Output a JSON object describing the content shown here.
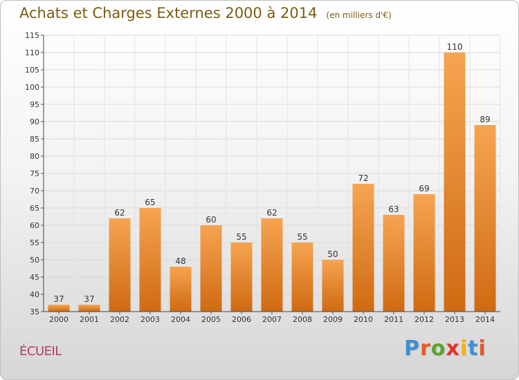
{
  "chart_data": {
    "type": "bar",
    "title": "Achats et Charges Externes 2000 à 2014",
    "unit_label": "(en milliers d'€)",
    "categories": [
      "2000",
      "2001",
      "2002",
      "2003",
      "2004",
      "2005",
      "2006",
      "2007",
      "2008",
      "2009",
      "2010",
      "2011",
      "2012",
      "2013",
      "2014"
    ],
    "values": [
      37,
      37,
      62,
      65,
      48,
      60,
      55,
      62,
      55,
      50,
      72,
      63,
      69,
      110,
      89
    ],
    "value_labels": [
      "37",
      "37",
      "62",
      "65",
      "48",
      "60",
      "55",
      "62",
      "55",
      "50",
      "72",
      "63",
      "69",
      "110",
      "89"
    ],
    "ylim": [
      35,
      115
    ],
    "y_ticks": [
      35,
      40,
      45,
      50,
      55,
      60,
      65,
      70,
      75,
      80,
      85,
      90,
      95,
      100,
      105,
      110,
      115
    ],
    "grid": true,
    "bar_color": "#f08a2a",
    "xlabel": "",
    "ylabel": ""
  },
  "commune": "ÉCUEIL",
  "brand": {
    "letters": [
      "P",
      "r",
      "o",
      "x",
      "i",
      "t",
      "i"
    ],
    "colors": [
      "#3f8fd2",
      "#e25a2a",
      "#5aa331",
      "#e2322a",
      "#f0b418",
      "#3f8fd2",
      "#e25a2a"
    ]
  }
}
